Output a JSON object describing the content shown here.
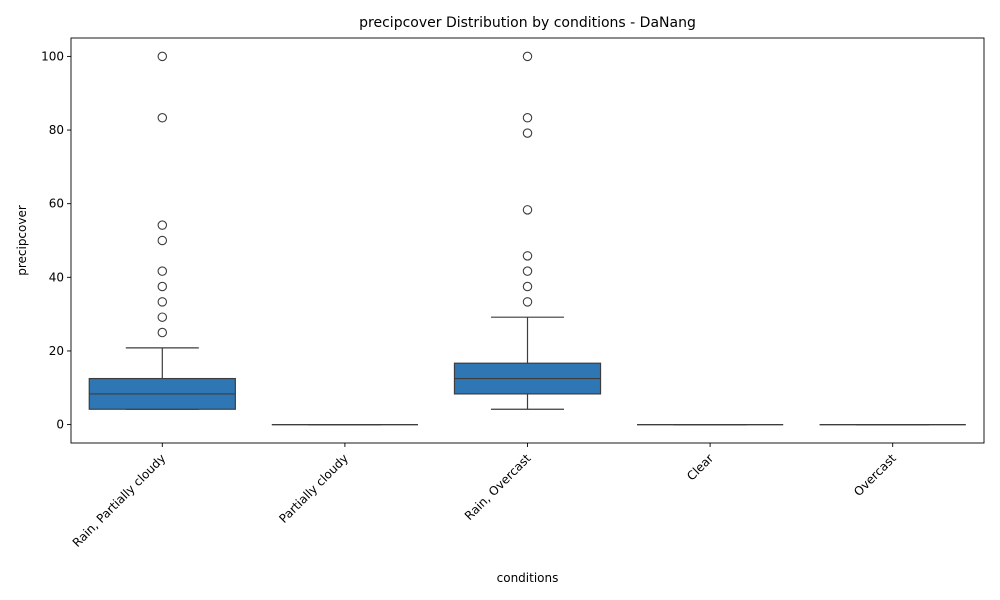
{
  "chart_data": {
    "type": "box",
    "title": "precipcover Distribution by conditions - DaNang",
    "xlabel": "conditions",
    "ylabel": "precipcover",
    "ylim": [
      -5,
      105
    ],
    "yticks": [
      0,
      20,
      40,
      60,
      80,
      100
    ],
    "box_color": "#2f77b4",
    "line_color": "#3d3d3d",
    "categories": [
      "Rain, Partially cloudy",
      "Partially cloudy",
      "Rain, Overcast",
      "Clear",
      "Overcast"
    ],
    "boxes": [
      {
        "category": "Rain, Partially cloudy",
        "whisker_low": 4.17,
        "q1": 4.17,
        "median": 8.33,
        "q3": 12.5,
        "whisker_high": 20.83,
        "outliers": [
          25,
          29.17,
          33.33,
          37.5,
          41.67,
          50,
          54.17,
          83.33,
          100
        ]
      },
      {
        "category": "Partially cloudy",
        "whisker_low": 0,
        "q1": 0,
        "median": 0,
        "q3": 0,
        "whisker_high": 0,
        "outliers": []
      },
      {
        "category": "Rain, Overcast",
        "whisker_low": 4.17,
        "q1": 8.33,
        "median": 12.5,
        "q3": 16.67,
        "whisker_high": 29.17,
        "outliers": [
          33.33,
          37.5,
          41.67,
          45.83,
          58.33,
          79.17,
          83.33,
          100
        ]
      },
      {
        "category": "Clear",
        "whisker_low": 0,
        "q1": 0,
        "median": 0,
        "q3": 0,
        "whisker_high": 0,
        "outliers": []
      },
      {
        "category": "Overcast",
        "whisker_low": 0,
        "q1": 0,
        "median": 0,
        "q3": 0,
        "whisker_high": 0,
        "outliers": []
      }
    ]
  }
}
